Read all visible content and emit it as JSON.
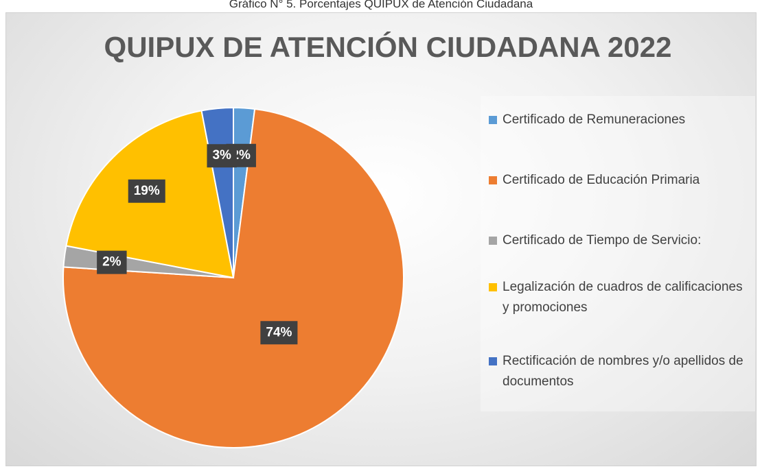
{
  "caption": "Gráfico N° 5. Porcentajes QUIPUX de Atención Ciudadana",
  "chart_data": {
    "type": "pie",
    "title": "QUIPUX DE ATENCIÓN CIUDADANA 2022",
    "categories": [
      "Certificado de Remuneraciones",
      "Certificado de Educación Primaria",
      "Certificado de Tiempo de Servicio:",
      "Legalización de cuadros de calificaciones y promociones",
      "Rectificación de nombres y/o apellidos de documentos"
    ],
    "values": [
      2,
      74,
      2,
      19,
      3
    ],
    "value_labels": [
      "2%",
      "74%",
      "2%",
      "19%",
      "3%"
    ],
    "colors": [
      "#5b9bd5",
      "#ed7d31",
      "#a5a5a5",
      "#ffc000",
      "#4472c4"
    ],
    "legend": "right"
  }
}
